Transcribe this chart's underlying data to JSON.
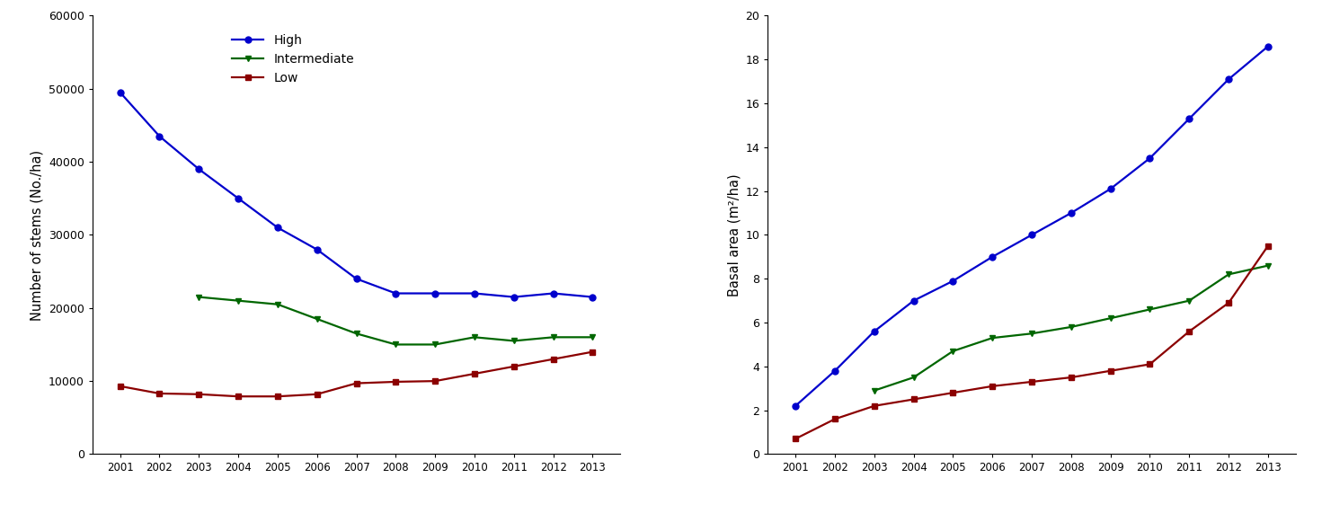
{
  "years": [
    2001,
    2002,
    2003,
    2004,
    2005,
    2006,
    2007,
    2008,
    2009,
    2010,
    2011,
    2012,
    2013
  ],
  "stems_high": [
    49500,
    43500,
    39000,
    35000,
    31000,
    28000,
    24000,
    22000,
    22000,
    22000,
    21500,
    22000,
    21500
  ],
  "stems_intermediate": [
    null,
    null,
    21500,
    21000,
    20500,
    18500,
    16500,
    15000,
    15000,
    16000,
    15500,
    16000,
    16000
  ],
  "stems_low": [
    9300,
    8300,
    8200,
    7900,
    7900,
    8200,
    9700,
    9900,
    10000,
    11000,
    12000,
    13000,
    14000
  ],
  "basal_high": [
    2.2,
    3.8,
    5.6,
    7.0,
    7.9,
    9.0,
    10.0,
    11.0,
    12.1,
    13.5,
    15.3,
    17.1,
    18.6
  ],
  "basal_intermediate": [
    null,
    null,
    2.9,
    3.5,
    4.7,
    5.3,
    5.5,
    5.8,
    6.2,
    6.6,
    7.0,
    8.2,
    8.6
  ],
  "basal_low": [
    0.7,
    1.6,
    2.2,
    2.5,
    2.8,
    3.1,
    3.3,
    3.5,
    3.8,
    4.1,
    5.6,
    6.9,
    9.5
  ],
  "color_high": "#0000cc",
  "color_intermediate": "#006600",
  "color_low": "#8b0000",
  "ylabel_left": "Number of stems (No./ha)",
  "ylabel_right": "Basal area (m²/ha)",
  "ylim_left": [
    0,
    60000
  ],
  "ylim_right": [
    0,
    20
  ],
  "yticks_left": [
    0,
    10000,
    20000,
    30000,
    40000,
    50000,
    60000
  ],
  "yticks_right": [
    0,
    2,
    4,
    6,
    8,
    10,
    12,
    14,
    16,
    18,
    20
  ],
  "legend_labels": [
    "High",
    "Intermediate",
    "Low"
  ],
  "fig_width": 14.71,
  "fig_height": 5.81,
  "dpi": 100
}
